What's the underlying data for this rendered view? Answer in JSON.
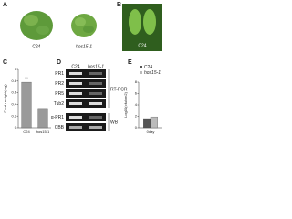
{
  "panels": {
    "a": {
      "letter": "A",
      "labels": [
        "C24",
        "hos15-1"
      ]
    },
    "b": {
      "letter": "B",
      "label": "C24"
    },
    "c": {
      "letter": "C"
    },
    "d": {
      "letter": "D",
      "columns": [
        "C24",
        "hos15-1"
      ],
      "rows": [
        "PR1",
        "PR2",
        "PR5",
        "Tub2",
        "α-PR1",
        "CBB"
      ],
      "groups": [
        "RT-PCR",
        "WB"
      ]
    },
    "e": {
      "letter": "E"
    }
  },
  "chart_data": [
    {
      "type": "bar",
      "y_label": "Fresh weight(mg)",
      "categories": [
        "C24",
        "hos15-1"
      ],
      "values": [
        0.78,
        0.33
      ],
      "color": "#9a9a9a",
      "annotation": "**",
      "ylim": [
        0,
        1
      ],
      "yticks": [
        0,
        0.2,
        0.4,
        0.6,
        0.8,
        1
      ]
    },
    {
      "type": "bar",
      "y_label": "Log10(cfu/cm2)",
      "categories": [
        "0day"
      ],
      "series": [
        {
          "name": "C24",
          "color": "#555555",
          "values": [
            1.6
          ]
        },
        {
          "name": "hos15-1",
          "color": "#bbbbbb",
          "values": [
            1.9
          ]
        }
      ],
      "ylim": [
        0,
        8
      ],
      "yticks": [
        0,
        2,
        4,
        6,
        8
      ]
    }
  ]
}
